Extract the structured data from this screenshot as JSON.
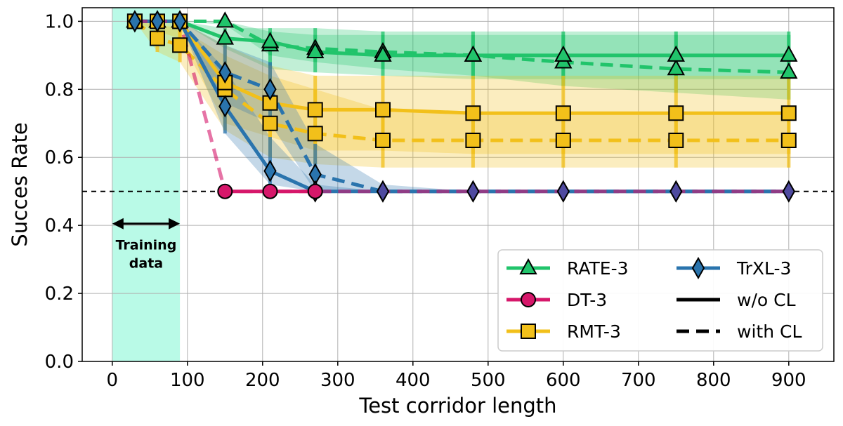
{
  "chart_data": {
    "type": "line",
    "xlabel": "Test corridor length",
    "ylabel": "Succes Rate",
    "xlim": [
      -40,
      960
    ],
    "ylim": [
      0,
      1.04
    ],
    "xticks": [
      0,
      100,
      200,
      300,
      400,
      500,
      600,
      700,
      800,
      900
    ],
    "yticks": [
      0.0,
      0.2,
      0.4,
      0.6,
      0.8,
      1.0
    ],
    "grid": true,
    "baseline": 0.5,
    "training_region": [
      0,
      90
    ],
    "annotation": {
      "line1": "Training",
      "line2": "data",
      "range": [
        0,
        90
      ]
    },
    "legend_position": "lower-right",
    "colors": {
      "RATE-3": "#21c46b",
      "DT-3": "#d6176a",
      "RMT-3": "#f2c01a",
      "TrXL-3": "#2a74ad",
      "training_region": "#7ff5d3"
    },
    "legend": [
      {
        "label": "RATE-3",
        "kind": "series",
        "series": "RATE-3"
      },
      {
        "label": "TrXL-3",
        "kind": "series",
        "series": "TrXL-3"
      },
      {
        "label": "DT-3",
        "kind": "series",
        "series": "DT-3"
      },
      {
        "label": "w/o CL",
        "kind": "line",
        "dash": "solid"
      },
      {
        "label": "RMT-3",
        "kind": "series",
        "series": "RMT-3"
      },
      {
        "label": "with CL",
        "kind": "line",
        "dash": "dashed"
      }
    ],
    "series": [
      {
        "name": "RATE-3",
        "variant": "with CL",
        "marker": "triangle",
        "dashed": true,
        "x": [
          30,
          60,
          90,
          150,
          210,
          270,
          360,
          480,
          600,
          750,
          900
        ],
        "y": [
          1.0,
          1.0,
          1.0,
          1.0,
          0.93,
          0.92,
          0.91,
          0.9,
          0.88,
          0.86,
          0.85
        ],
        "lower": [
          1.0,
          1.0,
          1.0,
          0.99,
          0.9,
          0.88,
          0.86,
          0.84,
          0.81,
          0.79,
          0.77
        ],
        "upper": [
          1.0,
          1.0,
          1.0,
          1.0,
          0.97,
          0.96,
          0.96,
          0.96,
          0.96,
          0.96,
          0.96
        ]
      },
      {
        "name": "RATE-3",
        "variant": "w/o CL",
        "marker": "triangle",
        "dashed": false,
        "x": [
          30,
          60,
          90,
          150,
          210,
          270,
          360,
          480,
          600,
          750,
          900
        ],
        "y": [
          1.0,
          1.0,
          1.0,
          0.95,
          0.94,
          0.91,
          0.9,
          0.9,
          0.9,
          0.9,
          0.9
        ],
        "lower": [
          1.0,
          1.0,
          1.0,
          0.92,
          0.86,
          0.85,
          0.84,
          0.83,
          0.83,
          0.83,
          0.83
        ],
        "upper": [
          1.0,
          1.0,
          1.0,
          0.98,
          0.98,
          0.98,
          0.97,
          0.97,
          0.97,
          0.97,
          0.97
        ]
      },
      {
        "name": "RMT-3",
        "variant": "with CL",
        "marker": "square",
        "dashed": true,
        "x": [
          30,
          60,
          90,
          150,
          210,
          270,
          360,
          480,
          600,
          750,
          900
        ],
        "y": [
          1.0,
          0.95,
          0.93,
          0.8,
          0.7,
          0.67,
          0.65,
          0.65,
          0.65,
          0.65,
          0.65
        ],
        "lower": [
          1.0,
          0.91,
          0.88,
          0.68,
          0.6,
          0.58,
          0.57,
          0.57,
          0.57,
          0.57,
          0.57
        ],
        "upper": [
          1.0,
          0.99,
          0.98,
          0.9,
          0.84,
          0.8,
          0.74,
          0.73,
          0.73,
          0.73,
          0.73
        ]
      },
      {
        "name": "RMT-3",
        "variant": "w/o CL",
        "marker": "square",
        "dashed": false,
        "x": [
          30,
          60,
          90,
          150,
          210,
          270,
          360,
          480,
          600,
          750,
          900
        ],
        "y": [
          1.0,
          1.0,
          1.0,
          0.82,
          0.76,
          0.74,
          0.74,
          0.73,
          0.73,
          0.73,
          0.73
        ],
        "lower": [
          1.0,
          0.97,
          0.95,
          0.7,
          0.66,
          0.62,
          0.62,
          0.61,
          0.61,
          0.61,
          0.61
        ],
        "upper": [
          1.0,
          1.0,
          1.0,
          0.93,
          0.87,
          0.84,
          0.84,
          0.84,
          0.84,
          0.84,
          0.84
        ]
      },
      {
        "name": "TrXL-3",
        "variant": "with CL",
        "marker": "diamond",
        "dashed": true,
        "x": [
          30,
          60,
          90,
          150,
          210,
          270,
          360,
          480,
          600,
          750,
          900
        ],
        "y": [
          1.0,
          1.0,
          1.0,
          0.85,
          0.8,
          0.55,
          0.5,
          0.5,
          0.5,
          0.5,
          0.5
        ],
        "lower": [
          1.0,
          1.0,
          1.0,
          0.76,
          0.7,
          0.5,
          0.5,
          0.5,
          0.5,
          0.5,
          0.5
        ],
        "upper": [
          1.0,
          1.0,
          1.0,
          0.93,
          0.88,
          0.64,
          0.52,
          0.5,
          0.5,
          0.5,
          0.5
        ]
      },
      {
        "name": "TrXL-3",
        "variant": "w/o CL",
        "marker": "diamond",
        "dashed": false,
        "x": [
          30,
          60,
          90,
          150,
          210,
          270,
          360,
          480,
          600,
          750,
          900
        ],
        "y": [
          1.0,
          1.0,
          1.0,
          0.75,
          0.56,
          0.5,
          0.5,
          0.5,
          0.5,
          0.5,
          0.5
        ],
        "lower": [
          1.0,
          1.0,
          1.0,
          0.67,
          0.52,
          0.5,
          0.5,
          0.5,
          0.5,
          0.5,
          0.5
        ],
        "upper": [
          1.0,
          1.0,
          1.0,
          0.86,
          0.66,
          0.52,
          0.5,
          0.5,
          0.5,
          0.5,
          0.5
        ]
      },
      {
        "name": "DT-3",
        "variant": "w/o CL",
        "marker": "circle",
        "dashed": false,
        "x": [
          150,
          210,
          270
        ],
        "y": [
          0.5,
          0.5,
          0.5
        ],
        "lower": [
          0.5,
          0.5,
          0.5
        ],
        "upper": [
          0.5,
          0.5,
          0.5
        ]
      },
      {
        "name": "DT-3",
        "variant": "with CL",
        "marker": "none",
        "dashed": true,
        "x": [
          30,
          60,
          90,
          150,
          210,
          270,
          360,
          480,
          600,
          750,
          900
        ],
        "y": [
          1.0,
          1.0,
          1.0,
          0.5,
          0.5,
          0.5,
          0.5,
          0.5,
          0.5,
          0.5,
          0.5
        ],
        "lower": [
          1.0,
          1.0,
          1.0,
          0.5,
          0.5,
          0.5,
          0.5,
          0.5,
          0.5,
          0.5,
          0.5
        ],
        "upper": [
          1.0,
          1.0,
          1.0,
          0.5,
          0.5,
          0.5,
          0.5,
          0.5,
          0.5,
          0.5,
          0.5
        ]
      }
    ]
  }
}
